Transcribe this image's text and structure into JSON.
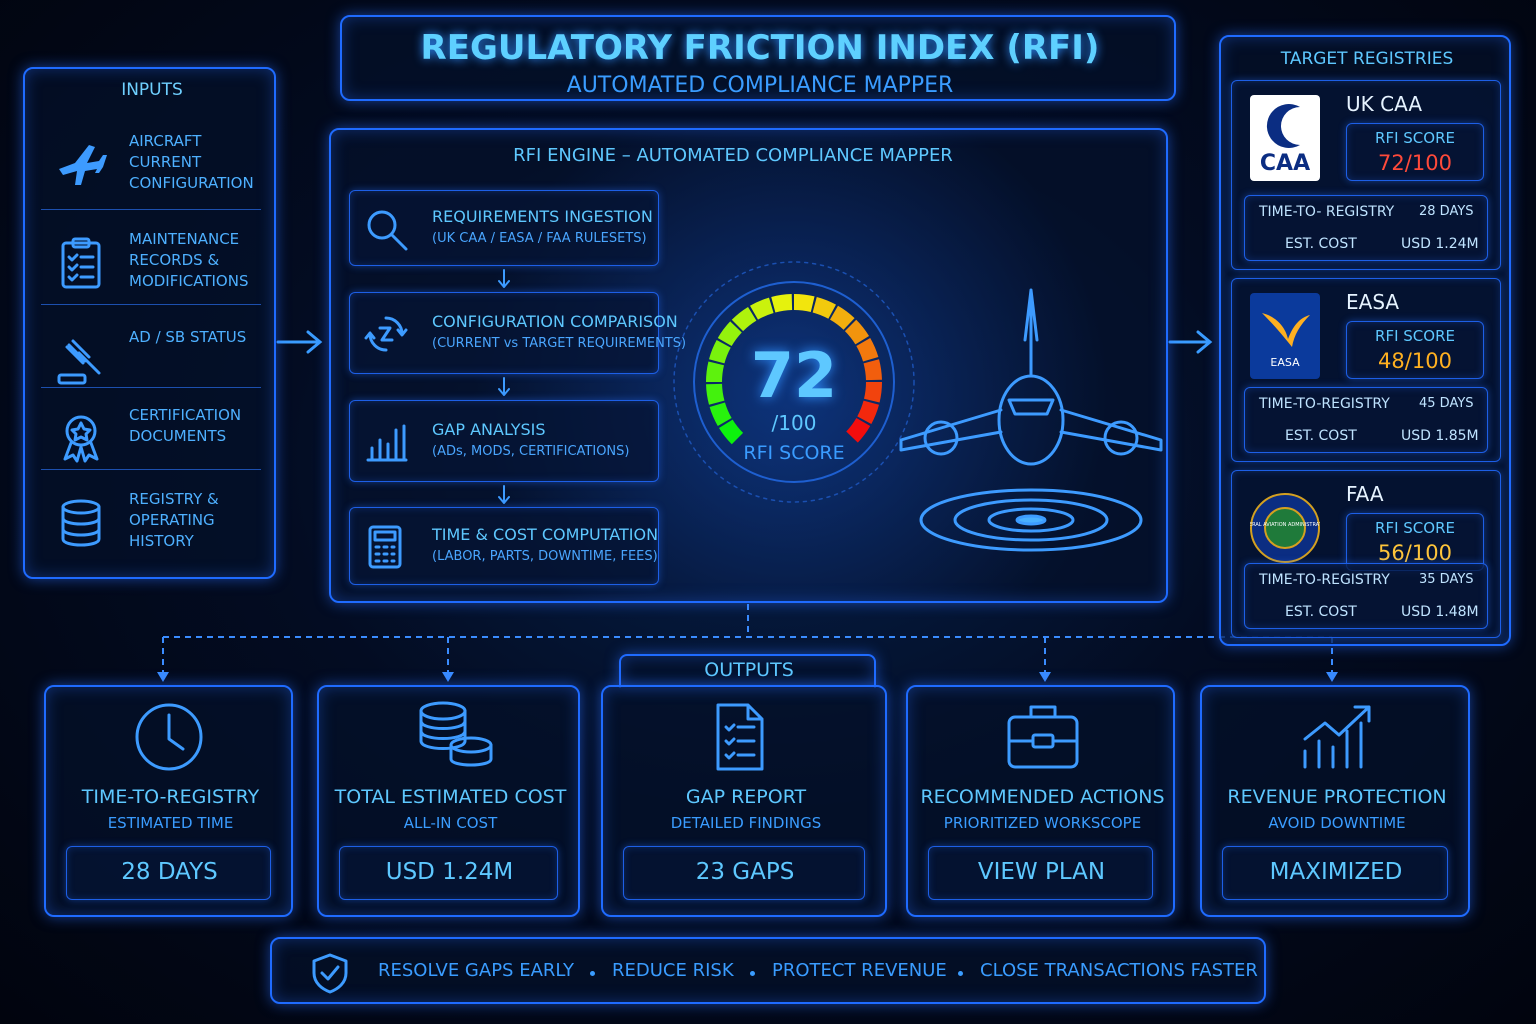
{
  "header": {
    "title": "REGULATORY FRICTION INDEX (RFI)",
    "subtitle": "AUTOMATED COMPLIANCE MAPPER"
  },
  "inputs": {
    "title": "INPUTS",
    "items": [
      "AIRCRAFT CURRENT CONFIGURATION",
      "MAINTENANCE RECORDS & MODIFICATIONS",
      "AD / SB STATUS",
      "CERTIFICATION DOCUMENTS",
      "REGISTRY & OPERATING HISTORY"
    ]
  },
  "engine": {
    "title": "RFI ENGINE – AUTOMATED COMPLIANCE MAPPER",
    "steps": [
      {
        "title": "REQUIREMENTS INGESTION",
        "detail": "(UK CAA / EASA / FAA RULESETS)"
      },
      {
        "title": "CONFIGURATION COMPARISON",
        "detail": "(CURRENT vs TARGET REQUIREMENTS)"
      },
      {
        "title": "GAP ANALYSIS",
        "detail": "(ADs, MODS, CERTIFICATIONS)"
      },
      {
        "title": "TIME & COST COMPUTATION",
        "detail": "(LABOR, PARTS, DOWNTIME, FEES)"
      }
    ],
    "gauge": {
      "score": 72,
      "scale": "/100",
      "label": "RFI SCORE"
    }
  },
  "registries": {
    "title": "TARGET REGISTRIES",
    "items": [
      {
        "name": "UK CAA",
        "logo": "CAA",
        "score_label": "RFI SCORE",
        "score": "72/100",
        "time_label": "TIME-TO- REGISTRY",
        "time": "28 DAYS",
        "cost_label": "EST. COST",
        "cost": "USD 1.24M"
      },
      {
        "name": "EASA",
        "logo": "EASA",
        "score_label": "RFI SCORE",
        "score": "48/100",
        "time_label": "TIME-TO-REGISTRY",
        "time": "45 DAYS",
        "cost_label": "EST. COST",
        "cost": "USD 1.85M"
      },
      {
        "name": "FAA",
        "logo": "FEDERAL AVIATION ADMINISTRATION",
        "score_label": "RFI SCORE",
        "score": "56/100",
        "time_label": "TIME-TO-REGISTRY",
        "time": "35 DAYS",
        "cost_label": "EST. COST",
        "cost": "USD 1.48M"
      }
    ]
  },
  "outputs": {
    "title": "OUTPUTS",
    "items": [
      {
        "title": "TIME-TO-REGISTRY",
        "subtitle": "ESTIMATED TIME",
        "value": "28 DAYS"
      },
      {
        "title": "TOTAL ESTIMATED COST",
        "subtitle": "ALL-IN COST",
        "value": "USD 1.24M"
      },
      {
        "title": "GAP REPORT",
        "subtitle": "DETAILED FINDINGS",
        "value": "23 GAPS"
      },
      {
        "title": "RECOMMENDED ACTIONS",
        "subtitle": "PRIORITIZED WORKSCOPE",
        "value": "VIEW PLAN"
      },
      {
        "title": "REVENUE PROTECTION",
        "subtitle": "AVOID DOWNTIME",
        "value": "MAXIMIZED"
      }
    ]
  },
  "footer": {
    "items": [
      "RESOLVE GAPS EARLY",
      "REDUCE RISK",
      "PROTECT REVENUE",
      "CLOSE TRANSACTIONS FASTER"
    ]
  }
}
